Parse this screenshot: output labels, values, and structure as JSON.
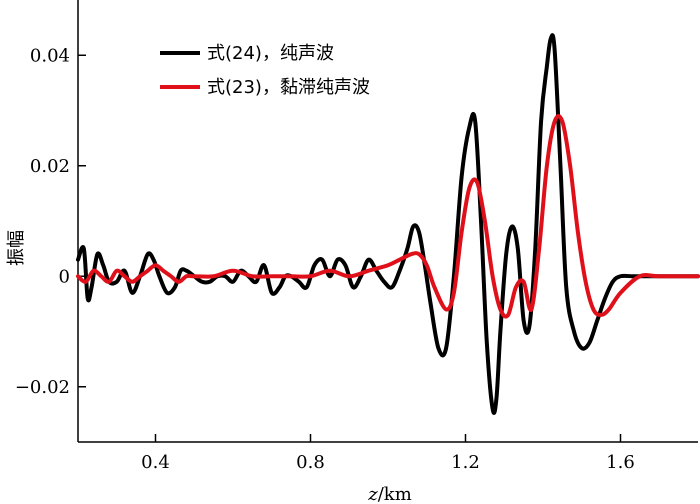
{
  "chart_data": {
    "type": "line",
    "xlabel": "z/km",
    "ylabel": "振幅",
    "xlim": [
      0.2,
      1.8
    ],
    "ylim": [
      -0.03,
      0.05
    ],
    "x_ticks": [
      0.4,
      0.8,
      1.2,
      1.6
    ],
    "x_tick_labels": [
      "0.4",
      "0.8",
      "1.2",
      "1.6"
    ],
    "y_ticks": [
      -0.02,
      0,
      0.02,
      0.04
    ],
    "y_tick_labels": [
      "−0.02",
      "0",
      "0.02",
      "0.04"
    ],
    "grid": false,
    "legend_position": "top-left",
    "series": [
      {
        "name": "式(24)，纯声波",
        "color": "#000000",
        "x": [
          0.2,
          0.215,
          0.225,
          0.235,
          0.25,
          0.265,
          0.28,
          0.3,
          0.32,
          0.34,
          0.36,
          0.38,
          0.395,
          0.41,
          0.43,
          0.45,
          0.465,
          0.48,
          0.5,
          0.52,
          0.54,
          0.56,
          0.58,
          0.6,
          0.62,
          0.64,
          0.66,
          0.68,
          0.7,
          0.72,
          0.735,
          0.75,
          0.77,
          0.79,
          0.81,
          0.83,
          0.85,
          0.87,
          0.89,
          0.91,
          0.93,
          0.95,
          0.97,
          0.99,
          1.01,
          1.03,
          1.05,
          1.065,
          1.08,
          1.095,
          1.11,
          1.13,
          1.15,
          1.17,
          1.19,
          1.21,
          1.225,
          1.24,
          1.255,
          1.27,
          1.28,
          1.29,
          1.305,
          1.32,
          1.335,
          1.35,
          1.365,
          1.38,
          1.395,
          1.41,
          1.42,
          1.43,
          1.445,
          1.46,
          1.48,
          1.5,
          1.52,
          1.54,
          1.56,
          1.58,
          1.6,
          1.63,
          1.65,
          1.7,
          1.8
        ],
        "values": [
          0.003,
          0.005,
          -0.004,
          -0.002,
          0.004,
          0.002,
          -0.001,
          -0.001,
          0.001,
          -0.003,
          0.0,
          0.004,
          0.003,
          0.0,
          -0.003,
          -0.002,
          0.001,
          0.001,
          0.0,
          -0.001,
          -0.001,
          0.0,
          0.0,
          -0.001,
          0.001,
          0.0,
          -0.001,
          0.002,
          -0.003,
          -0.002,
          0.0,
          0.0,
          -0.001,
          -0.002,
          0.002,
          0.003,
          0.0,
          0.003,
          0.002,
          -0.002,
          0.0,
          0.003,
          0.001,
          -0.001,
          -0.002,
          0.001,
          0.005,
          0.009,
          0.008,
          0.002,
          -0.005,
          -0.013,
          -0.013,
          0.0,
          0.018,
          0.027,
          0.028,
          0.01,
          -0.012,
          -0.024,
          -0.022,
          -0.01,
          0.004,
          0.009,
          0.005,
          -0.008,
          -0.009,
          0.005,
          0.028,
          0.038,
          0.043,
          0.041,
          0.02,
          -0.002,
          -0.01,
          -0.013,
          -0.012,
          -0.008,
          -0.004,
          -0.001,
          0.0,
          0.0,
          0.0,
          0.0,
          0.0
        ]
      },
      {
        "name": "式(23)，黏滞纯声波",
        "color": "#e0101a",
        "x": [
          0.2,
          0.22,
          0.24,
          0.26,
          0.28,
          0.3,
          0.32,
          0.34,
          0.36,
          0.38,
          0.4,
          0.42,
          0.44,
          0.46,
          0.48,
          0.5,
          0.55,
          0.6,
          0.65,
          0.7,
          0.75,
          0.8,
          0.85,
          0.9,
          0.95,
          1.0,
          1.03,
          1.06,
          1.08,
          1.1,
          1.12,
          1.15,
          1.17,
          1.19,
          1.21,
          1.23,
          1.25,
          1.27,
          1.29,
          1.31,
          1.33,
          1.35,
          1.37,
          1.39,
          1.41,
          1.43,
          1.45,
          1.47,
          1.49,
          1.51,
          1.53,
          1.55,
          1.57,
          1.6,
          1.65,
          1.7,
          1.8
        ],
        "values": [
          0.0,
          -0.001,
          0.001,
          0.0,
          -0.001,
          0.001,
          0.0,
          -0.001,
          0.0,
          0.001,
          0.002,
          0.001,
          0.0,
          -0.001,
          0.0,
          0.0,
          0.0,
          0.001,
          0.0,
          0.0,
          0.0,
          0.0,
          0.001,
          0.0,
          0.001,
          0.002,
          0.003,
          0.004,
          0.004,
          0.002,
          -0.002,
          -0.006,
          -0.003,
          0.008,
          0.016,
          0.017,
          0.01,
          0.0,
          -0.006,
          -0.007,
          -0.002,
          -0.001,
          -0.006,
          0.005,
          0.02,
          0.028,
          0.028,
          0.02,
          0.008,
          -0.001,
          -0.006,
          -0.007,
          -0.006,
          -0.003,
          0.0,
          0.0,
          0.0
        ]
      }
    ]
  }
}
